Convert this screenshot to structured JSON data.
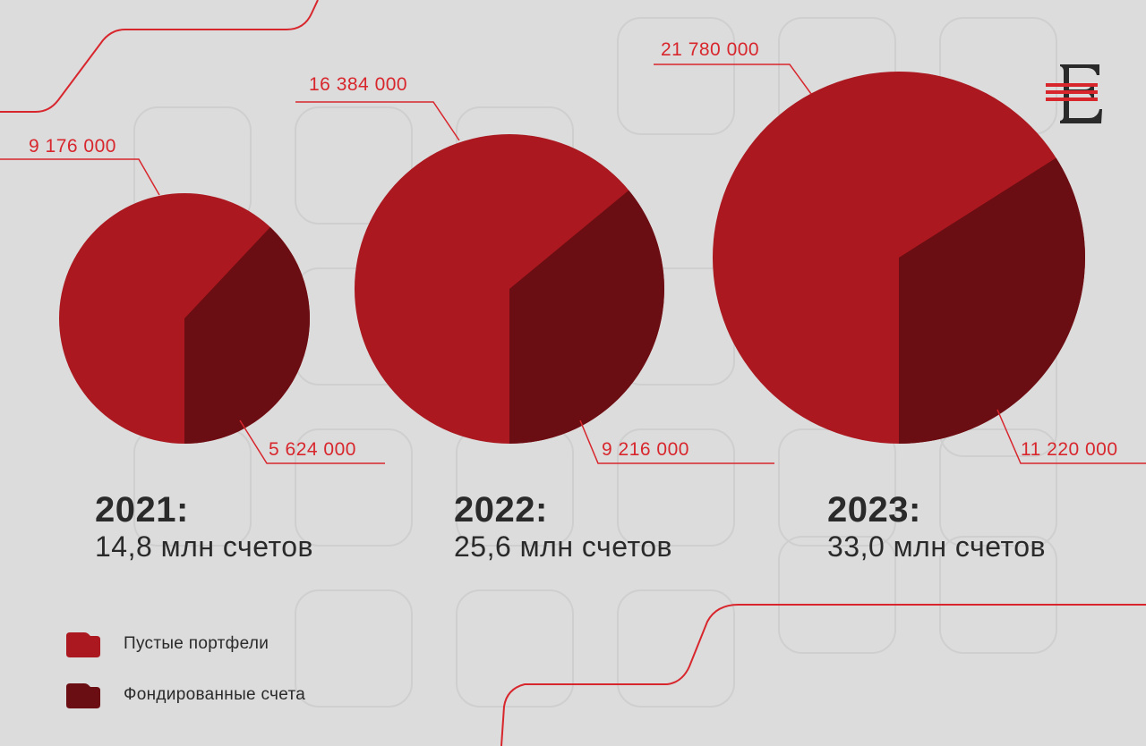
{
  "colors": {
    "background": "#dcdcdc",
    "empty": "#ab181f",
    "funded": "#6b0e13",
    "accent_line": "#d8262d",
    "text": "#2a2a2a"
  },
  "chart_data": {
    "type": "pie",
    "legend": [
      {
        "label": "Пустые портфели",
        "color": "#ab181f"
      },
      {
        "label": "Фондированные счета",
        "color": "#6b0e13"
      }
    ],
    "charts": [
      {
        "year": "2021:",
        "total": "14,8 млн счетов",
        "slices": [
          {
            "series": "Пустые портфели",
            "value": 9176000,
            "label": "9 176 000"
          },
          {
            "series": "Фондированные счета",
            "value": 5624000,
            "label": "5 624 000"
          }
        ]
      },
      {
        "year": "2022:",
        "total": "25,6 млн счетов",
        "slices": [
          {
            "series": "Пустые портфели",
            "value": 16384000,
            "label": "16 384 000"
          },
          {
            "series": "Фондированные счета",
            "value": 9216000,
            "label": "9 216 000"
          }
        ]
      },
      {
        "year": "2023:",
        "total": "33,0 млн счетов",
        "slices": [
          {
            "series": "Пустые портфели",
            "value": 21780000,
            "label": "21 780 000"
          },
          {
            "series": "Фондированные счета",
            "value": 11220000,
            "label": "11 220 000"
          }
        ]
      }
    ]
  }
}
